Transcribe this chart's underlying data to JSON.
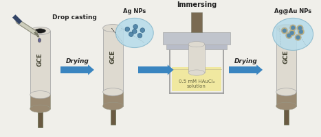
{
  "bg_color": "#f0efea",
  "electrode_body_color": "#dedad0",
  "electrode_rim_color": "#c8c4b8",
  "electrode_tip_color": "#9a8a72",
  "electrode_wire_color": "#6a5a42",
  "electrode_dark_top": "#1a1a1a",
  "arrow_color": "#3a85c0",
  "text_color": "#222222",
  "np_circle_color": "#b8dcea",
  "np_dot_color": "#5588aa",
  "np_dot_edge": "#336688",
  "solution_color": "#f0e8a0",
  "solution_border": "#d8d090",
  "beaker_color": "#cccccc",
  "plate_color": "#b8bcc8",
  "labels": {
    "drop_casting": "Drop casting",
    "drying1": "Drying",
    "immersing": "Immersing",
    "drying2": "Drying",
    "ag_nps": "Ag NPs",
    "agau_nps": "Ag@Au NPs",
    "gce": "GCE",
    "solution": "0.5 mM HAuCl₄\nsolution"
  }
}
